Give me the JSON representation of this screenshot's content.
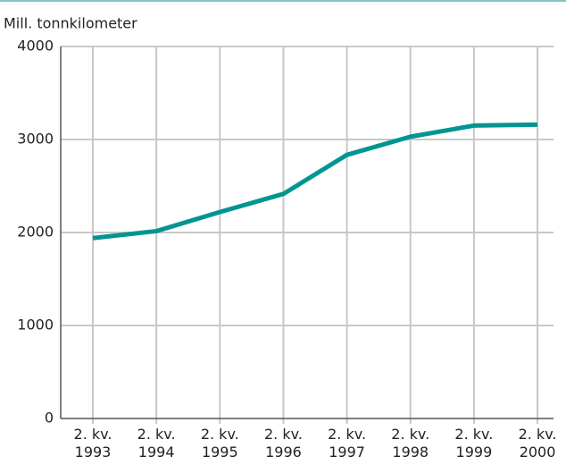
{
  "chart_data": {
    "type": "line",
    "ylabel": "Mill. tonnkilometer",
    "categories": [
      "2. kv. 1993",
      "2. kv. 1994",
      "2. kv. 1995",
      "2. kv. 1996",
      "2. kv. 1997",
      "2. kv. 1998",
      "2. kv. 1999",
      "2. kv. 2000"
    ],
    "values": [
      1940,
      2015,
      2220,
      2415,
      2835,
      3030,
      3150,
      3160
    ],
    "color": "#009591",
    "ylim": [
      0,
      4000
    ],
    "yticks": [
      0,
      1000,
      2000,
      3000,
      4000
    ],
    "grid": true
  }
}
